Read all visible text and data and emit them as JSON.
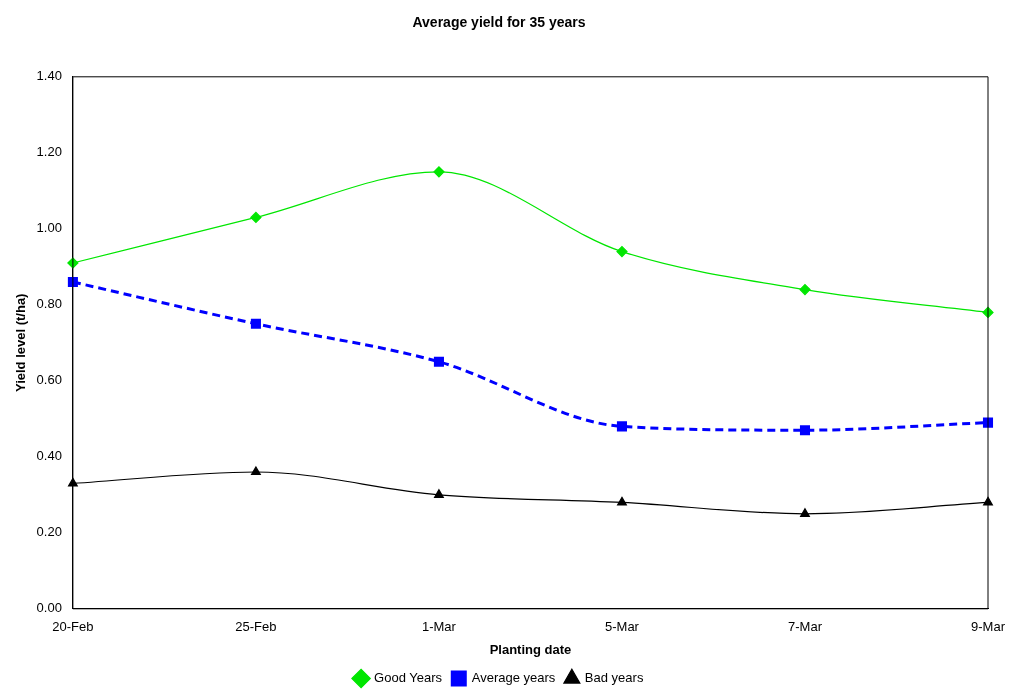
{
  "chart_data": {
    "type": "line",
    "title": "Average yield for 35 years",
    "xlabel": "Planting date",
    "ylabel": "Yield level (t/ha)",
    "categories": [
      "20-Feb",
      "25-Feb",
      "1-Mar",
      "5-Mar",
      "7-Mar",
      "9-Mar"
    ],
    "ylim": [
      0,
      1.4
    ],
    "yticks": [
      {
        "value": 0,
        "label": "0.00"
      },
      {
        "value": 0.2,
        "label": "0.20"
      },
      {
        "value": 0.4,
        "label": "0.40"
      },
      {
        "value": 0.6,
        "label": "0.60"
      },
      {
        "value": 0.8,
        "label": "0.80"
      },
      {
        "value": 1,
        "label": "1.00"
      },
      {
        "value": 1.2,
        "label": "1.20"
      },
      {
        "value": 1.4,
        "label": "1.40"
      }
    ],
    "grid": false,
    "legend": "bottom",
    "series": [
      {
        "name": "Good Years",
        "color": "#00e600",
        "values": [
          0.91,
          1.03,
          1.15,
          0.94,
          0.84,
          0.78
        ],
        "marker": "diamond",
        "line_style": "solid"
      },
      {
        "name": "Average years",
        "color": "#0000ff",
        "values": [
          0.86,
          0.75,
          0.65,
          0.48,
          0.47,
          0.49
        ],
        "marker": "square",
        "line_style": "dashed"
      },
      {
        "name": "Bad years",
        "color": "#000000",
        "values": [
          0.33,
          0.36,
          0.3,
          0.28,
          0.25,
          0.28
        ],
        "marker": "triangle",
        "line_style": "solid"
      }
    ]
  }
}
